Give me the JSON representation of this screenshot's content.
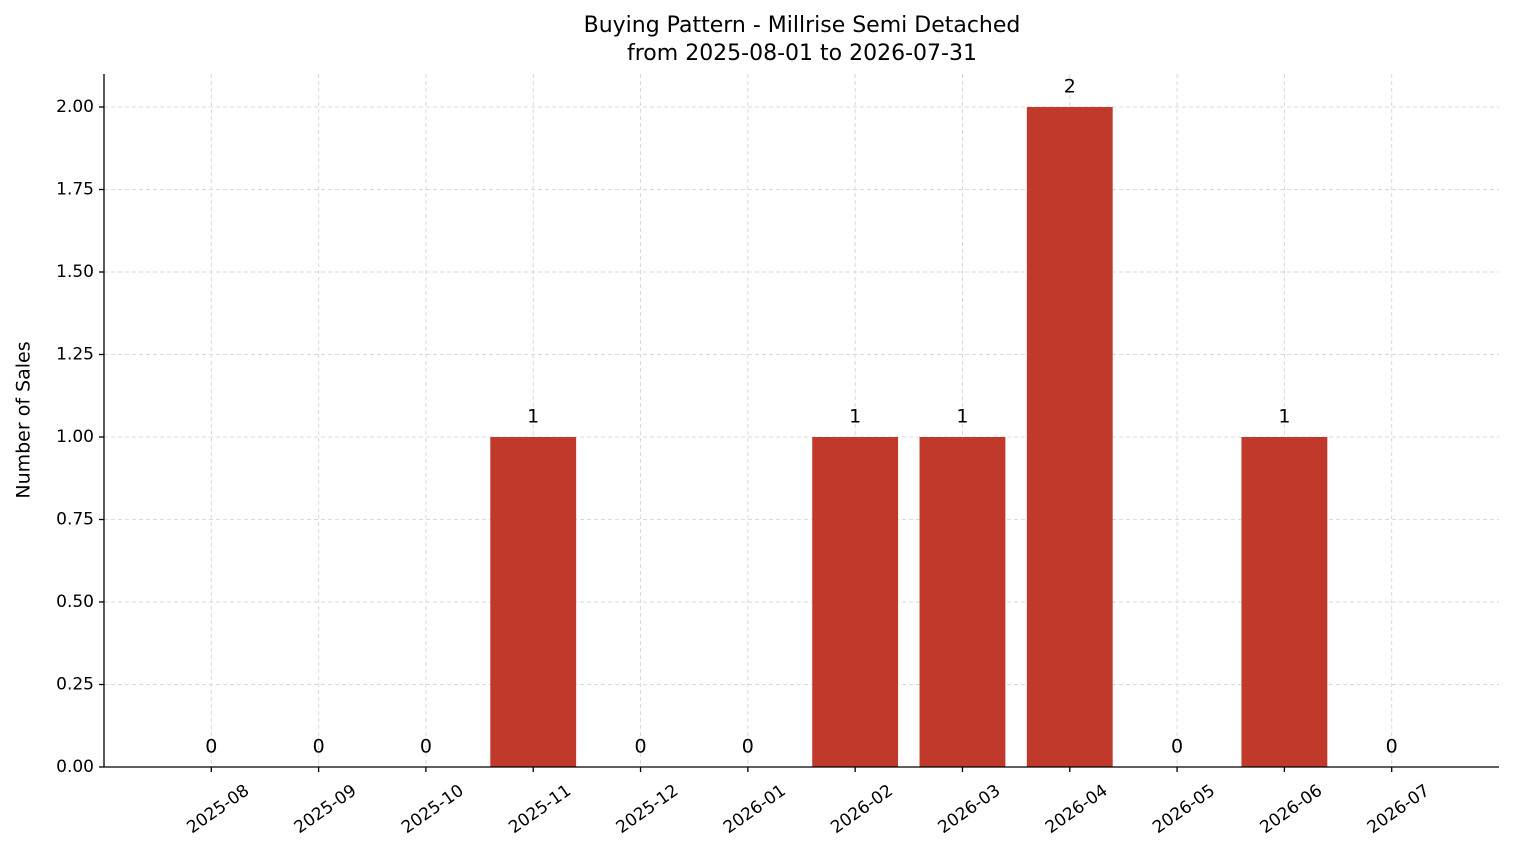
{
  "chart_data": {
    "type": "bar",
    "title": [
      "Buying Pattern - Millrise Semi Detached",
      "from 2025-08-01 to 2026-07-31"
    ],
    "y_label": "Number of Sales",
    "categories": [
      "2025-08",
      "2025-09",
      "2025-10",
      "2025-11",
      "2025-12",
      "2026-01",
      "2026-02",
      "2026-03",
      "2026-04",
      "2026-05",
      "2026-06",
      "2026-07"
    ],
    "values": [
      0,
      0,
      0,
      1,
      0,
      0,
      1,
      1,
      2,
      0,
      1,
      0
    ],
    "color": "#c0392b",
    "ylim": [
      0,
      2.1
    ],
    "yticks": [
      {
        "value": 0,
        "label": "0.00"
      },
      {
        "value": 0.25,
        "label": "0.25"
      },
      {
        "value": 0.5,
        "label": "0.50"
      },
      {
        "value": 0.75,
        "label": "0.75"
      },
      {
        "value": 1,
        "label": "1.00"
      },
      {
        "value": 1.25,
        "label": "1.25"
      },
      {
        "value": 1.5,
        "label": "1.50"
      },
      {
        "value": 1.75,
        "label": "1.75"
      },
      {
        "value": 2,
        "label": "2.00"
      }
    ],
    "grid": true
  }
}
